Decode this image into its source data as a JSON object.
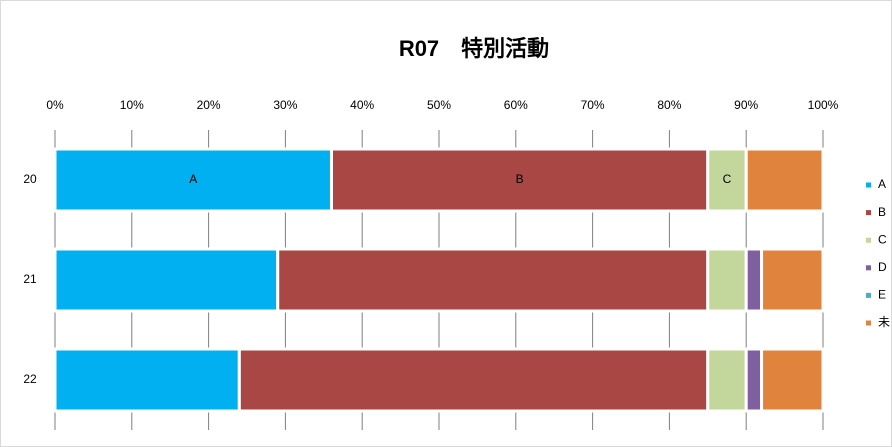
{
  "chart_data": {
    "type": "stacked-barh",
    "title": "R07　特別活動",
    "categories": [
      "20",
      "21",
      "22"
    ],
    "series": [
      {
        "name": "A",
        "color": "#00b0f0",
        "values": [
          36,
          29,
          24
        ]
      },
      {
        "name": "B",
        "color": "#a94745",
        "values": [
          49,
          56,
          61
        ]
      },
      {
        "name": "C",
        "color": "#c3d69b",
        "values": [
          5,
          5,
          5
        ]
      },
      {
        "name": "D",
        "color": "#7f5f9f",
        "values": [
          0,
          2,
          2
        ]
      },
      {
        "name": "E",
        "color": "#4bacc6",
        "values": [
          0,
          0,
          0
        ]
      },
      {
        "name": "未",
        "color": "#e0843d",
        "values": [
          10,
          8,
          8
        ]
      }
    ],
    "segment_labels_on": "20",
    "xlim": [
      0,
      100
    ],
    "xticks": [
      {
        "value": 0,
        "label": "0%"
      },
      {
        "value": 10,
        "label": "10%"
      },
      {
        "value": 20,
        "label": "20%"
      },
      {
        "value": 30,
        "label": "30%"
      },
      {
        "value": 40,
        "label": "40%"
      },
      {
        "value": 50,
        "label": "50%"
      },
      {
        "value": 60,
        "label": "60%"
      },
      {
        "value": 70,
        "label": "70%"
      },
      {
        "value": 80,
        "label": "80%"
      },
      {
        "value": 90,
        "label": "90%"
      },
      {
        "value": 100,
        "label": "100%"
      }
    ],
    "grid": true,
    "legend": "right"
  }
}
